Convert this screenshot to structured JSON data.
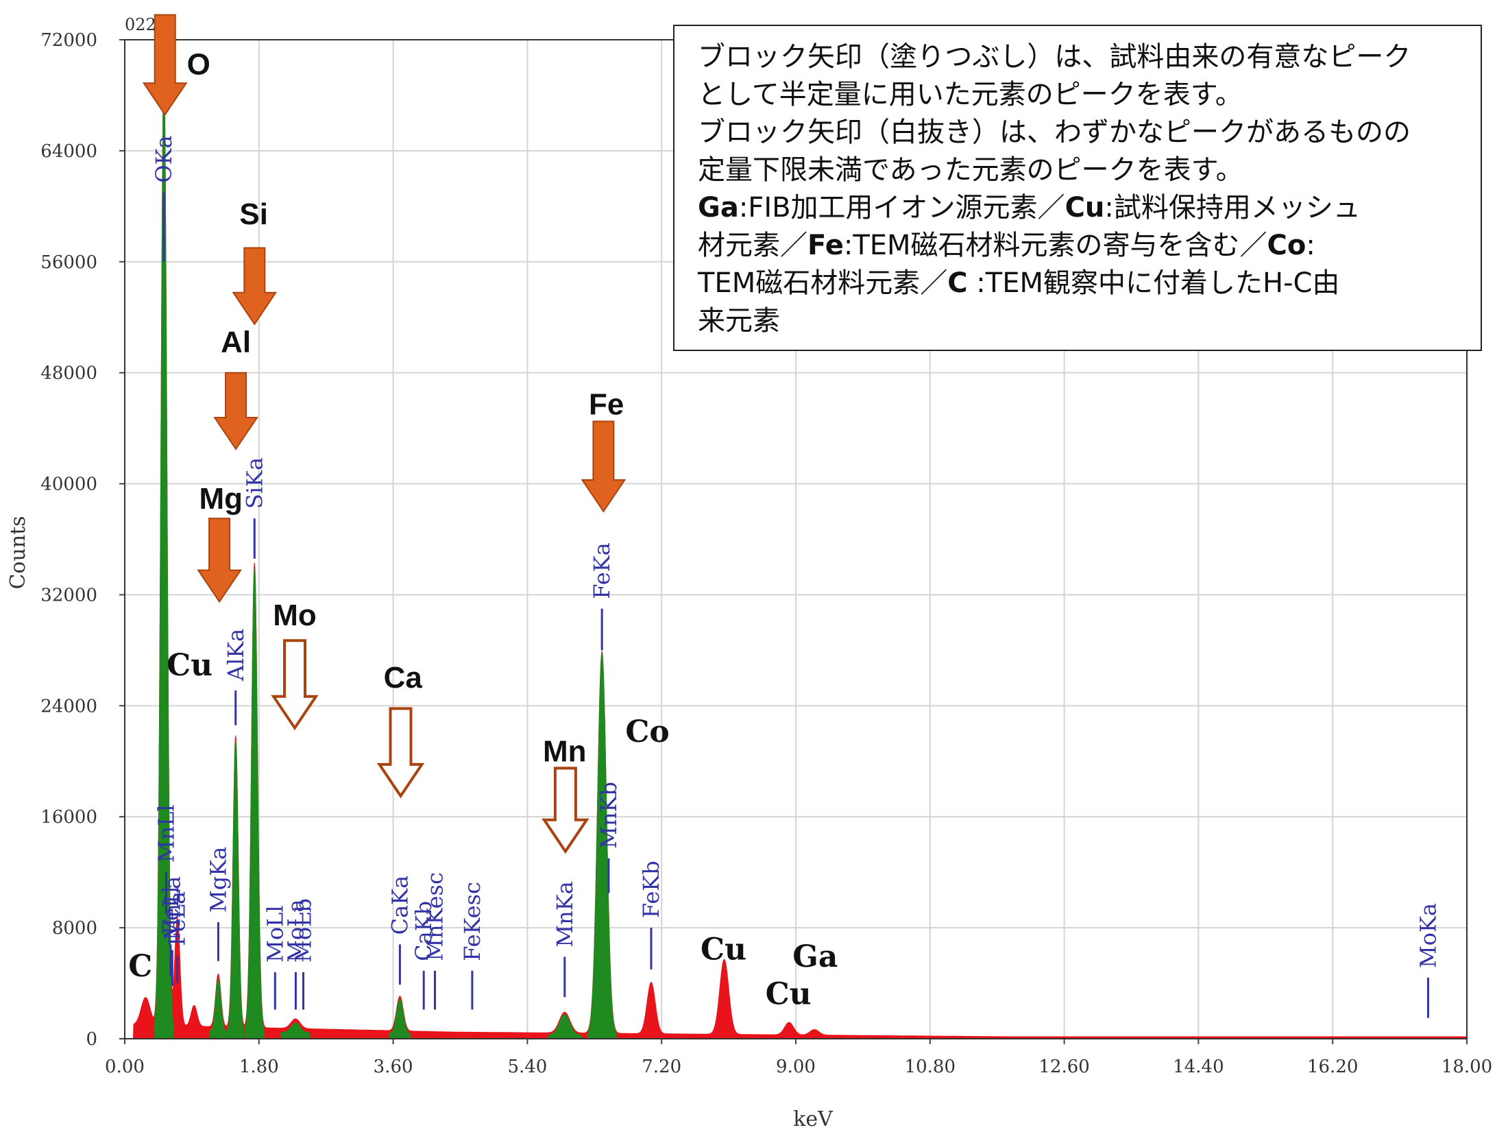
{
  "chart_data": {
    "type": "area",
    "xlabel": "keV",
    "ylabel": "Counts",
    "xlim": [
      0,
      18
    ],
    "ylim": [
      0,
      72000
    ],
    "x_ticks": [
      "0.00",
      "1.80",
      "3.60",
      "5.40",
      "7.20",
      "9.00",
      "10.80",
      "12.60",
      "14.40",
      "16.20",
      "18.00"
    ],
    "y_ticks": [
      "0",
      "8000",
      "16000",
      "24000",
      "32000",
      "40000",
      "48000",
      "56000",
      "64000",
      "72000"
    ],
    "grid": true,
    "corner_label": "022",
    "colors": {
      "spectrum": "#e8131b",
      "significant_peak": "#1f8a1f",
      "marker": "#3333a8",
      "arrow": "#e0621f",
      "arrow_edge": "#a94410"
    },
    "green_peaks": [
      {
        "center": 0.525,
        "height": 69000,
        "width": 0.04
      },
      {
        "center": 1.254,
        "height": 3800,
        "width": 0.035
      },
      {
        "center": 1.487,
        "height": 21000,
        "width": 0.035
      },
      {
        "center": 1.74,
        "height": 33500,
        "width": 0.04
      },
      {
        "center": 2.29,
        "height": 700,
        "width": 0.06
      },
      {
        "center": 3.69,
        "height": 2500,
        "width": 0.045
      },
      {
        "center": 5.9,
        "height": 1500,
        "width": 0.07
      },
      {
        "center": 6.4,
        "height": 27500,
        "width": 0.06
      }
    ],
    "red_peaks": [
      {
        "center": 0.28,
        "height": 2000,
        "width": 0.06
      },
      {
        "center": 0.705,
        "height": 7800,
        "width": 0.035
      },
      {
        "center": 0.93,
        "height": 1500,
        "width": 0.04
      },
      {
        "center": 7.06,
        "height": 3700,
        "width": 0.055
      },
      {
        "center": 8.04,
        "height": 5400,
        "width": 0.06
      },
      {
        "center": 8.91,
        "height": 900,
        "width": 0.06
      },
      {
        "center": 9.25,
        "height": 400,
        "width": 0.06
      }
    ],
    "peak_markers": [
      {
        "label": "OKa",
        "x": 0.525,
        "y_top": 61000,
        "y_bottom": 56000
      },
      {
        "label": "SiKa",
        "x": 1.74,
        "y_top": 37500,
        "y_bottom": 34600
      },
      {
        "label": "AlKa",
        "x": 1.487,
        "y_top": 25100,
        "y_bottom": 22600
      },
      {
        "label": "MgKa",
        "x": 1.254,
        "y_top": 8400,
        "y_bottom": 5600
      },
      {
        "label": "MnLl",
        "x": 0.556,
        "y_top": 12000,
        "y_bottom": 9000
      },
      {
        "label": "MnLa",
        "x": 0.637,
        "y_top": 6400,
        "y_bottom": 3800
      },
      {
        "label": "FeLl",
        "x": 0.615,
        "y_top": 6800,
        "y_bottom": 4500
      },
      {
        "label": "FeLa",
        "x": 0.705,
        "y_top": 6000,
        "y_bottom": 4000
      },
      {
        "label": "MoLl",
        "x": 2.016,
        "y_top": 4800,
        "y_bottom": 2100
      },
      {
        "label": "MoLa",
        "x": 2.293,
        "y_top": 4800,
        "y_bottom": 2100
      },
      {
        "label": "MoLb",
        "x": 2.395,
        "y_top": 4800,
        "y_bottom": 2100
      },
      {
        "label": "CaKa",
        "x": 3.69,
        "y_top": 6800,
        "y_bottom": 3900
      },
      {
        "label": "CaKb",
        "x": 4.01,
        "y_top": 4900,
        "y_bottom": 2100
      },
      {
        "label": "MnKesc",
        "x": 4.16,
        "y_top": 4900,
        "y_bottom": 2100
      },
      {
        "label": "FeKesc",
        "x": 4.66,
        "y_top": 4900,
        "y_bottom": 2100
      },
      {
        "label": "MnKa",
        "x": 5.9,
        "y_top": 5900,
        "y_bottom": 3000
      },
      {
        "label": "FeKa",
        "x": 6.4,
        "y_top": 31000,
        "y_bottom": 28000
      },
      {
        "label": "MnKb",
        "x": 6.49,
        "y_top": 13000,
        "y_bottom": 10500
      },
      {
        "label": "FeKb",
        "x": 7.06,
        "y_top": 8000,
        "y_bottom": 5000
      },
      {
        "label": "MoKa",
        "x": 17.48,
        "y_top": 4400,
        "y_bottom": 1500
      }
    ],
    "element_labels": [
      {
        "text": "O",
        "x": 0.99,
        "y": 69500,
        "font": "sans"
      },
      {
        "text": "Si",
        "x": 1.73,
        "y": 58700,
        "font": "sans"
      },
      {
        "text": "Al",
        "x": 1.49,
        "y": 49500,
        "font": "sans"
      },
      {
        "text": "Mg",
        "x": 1.29,
        "y": 38200,
        "font": "sans"
      },
      {
        "text": "Mo",
        "x": 2.28,
        "y": 29800,
        "font": "sans"
      },
      {
        "text": "Ca",
        "x": 3.73,
        "y": 25300,
        "font": "sans"
      },
      {
        "text": "Fe",
        "x": 6.46,
        "y": 45000,
        "font": "sans"
      },
      {
        "text": "Mn",
        "x": 5.9,
        "y": 20000,
        "font": "sans"
      },
      {
        "text": "Cu",
        "x": 0.87,
        "y": 26200,
        "font": "serif"
      },
      {
        "text": "Co",
        "x": 7.01,
        "y": 21400,
        "font": "serif"
      },
      {
        "text": "C",
        "x": 0.21,
        "y": 4500,
        "font": "serif"
      },
      {
        "text": "Cu",
        "x": 8.03,
        "y": 5700,
        "font": "serif"
      },
      {
        "text": "Ga",
        "x": 9.26,
        "y": 5200,
        "font": "serif"
      },
      {
        "text": "Cu",
        "x": 8.9,
        "y": 2500,
        "font": "serif"
      }
    ],
    "arrows": [
      {
        "element": "O",
        "x": 0.54,
        "y_top": 73800,
        "y_bottom": 66600,
        "style": "filled"
      },
      {
        "element": "Si",
        "x": 1.74,
        "y_top": 57000,
        "y_bottom": 51500,
        "style": "filled"
      },
      {
        "element": "Al",
        "x": 1.49,
        "y_top": 48000,
        "y_bottom": 42500,
        "style": "filled"
      },
      {
        "element": "Mg",
        "x": 1.27,
        "y_top": 37500,
        "y_bottom": 31500,
        "style": "filled"
      },
      {
        "element": "Mo",
        "x": 2.28,
        "y_top": 28700,
        "y_bottom": 22400,
        "style": "outline"
      },
      {
        "element": "Ca",
        "x": 3.7,
        "y_top": 23800,
        "y_bottom": 17500,
        "style": "outline"
      },
      {
        "element": "Fe",
        "x": 6.42,
        "y_top": 44500,
        "y_bottom": 38000,
        "style": "filled"
      },
      {
        "element": "Mn",
        "x": 5.91,
        "y_top": 19500,
        "y_bottom": 13500,
        "style": "outline"
      }
    ]
  },
  "note": {
    "line1": "ブロック矢印（塗りつぶし）は、試料由来の有意なピーク",
    "line2": "として半定量に用いた元素のピークを表す。",
    "line3": "ブロック矢印（白抜き）は、わずかなピークがあるものの",
    "line4": "定量下限未満であった元素のピークを表す。",
    "ga": "Ga",
    "ga_text": ":FIB加工用イオン源元素／",
    "cu": "Cu",
    "cu_text": ":試料保持用メッシュ",
    "line6_text": "材元素／",
    "fe": "Fe",
    "fe_text": ":TEM磁石材料元素の寄与を含む／",
    "co": "Co",
    "co_text": ":",
    "line7_text": "TEM磁石材料元素／",
    "c": "C",
    "c_text": " :TEM観察中に付着したH-C由",
    "line8": "来元素"
  }
}
